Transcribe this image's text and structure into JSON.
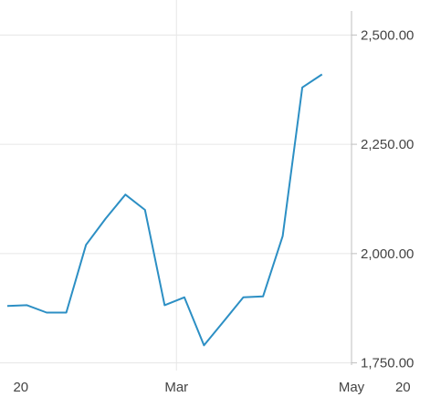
{
  "chart_data": {
    "type": "line",
    "title": "",
    "xlabel": "",
    "ylabel": "",
    "x_ticks": [
      "20",
      "Mar",
      "May",
      "20"
    ],
    "y_ticks": [
      "1,750.00",
      "2,000.00",
      "2,250.00",
      "2,500.00"
    ],
    "y_tick_values": [
      1750,
      2000,
      2250,
      2500
    ],
    "ylim": [
      1745,
      2555
    ],
    "y_axis_position": "right",
    "grid": true,
    "series": [
      {
        "color": "#2c8fc4",
        "x": [
          0,
          1,
          2,
          3,
          4,
          5,
          6,
          7,
          8,
          9,
          10,
          11,
          12,
          13,
          14,
          15,
          16
        ],
        "values": [
          1880,
          1882,
          1865,
          1865,
          2020,
          2080,
          2135,
          2100,
          1882,
          1900,
          1790,
          1845,
          1900,
          1902,
          2040,
          2380,
          2410
        ]
      }
    ],
    "x_tick_positions": [
      0.3,
      8.6,
      17.5,
      20.5
    ]
  },
  "colors": {
    "line": "#2c8fc4",
    "grid": "#e6e6e6",
    "axis": "#bfbfbf",
    "text": "#444444"
  }
}
